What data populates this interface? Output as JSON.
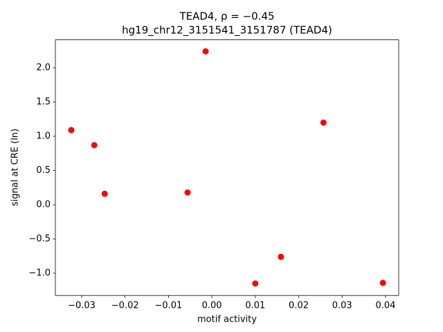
{
  "chart_data": {
    "type": "scatter",
    "title": "TEAD4, ρ = −0.45",
    "subtitle": "hg19_chr12_3151541_3151787 (TEAD4)",
    "x_label": "motif activity",
    "y_label": "signal at CRE (ln)",
    "x": [
      -0.0324,
      -0.0271,
      -0.0247,
      -0.0056,
      -0.00145,
      0.01,
      0.0159,
      0.0257,
      0.0394
    ],
    "values": [
      1.09,
      0.87,
      0.16,
      0.18,
      2.24,
      -1.15,
      -0.76,
      1.2,
      -1.14
    ],
    "color": "#ff0000",
    "xlim": [
      -0.03606,
      0.04304
    ],
    "ylim": [
      -1.325,
      2.408
    ],
    "xticks": [
      {
        "value": -0.03,
        "label": "−0.03"
      },
      {
        "value": -0.02,
        "label": "−0.02"
      },
      {
        "value": -0.01,
        "label": "−0.01"
      },
      {
        "value": 0,
        "label": "0.00"
      },
      {
        "value": 0.01,
        "label": "0.01"
      },
      {
        "value": 0.02,
        "label": "0.02"
      },
      {
        "value": 0.03,
        "label": "0.03"
      },
      {
        "value": 0.04,
        "label": "0.04"
      }
    ],
    "yticks": [
      {
        "value": -1.0,
        "label": "−1.0"
      },
      {
        "value": -0.5,
        "label": "−0.5"
      },
      {
        "value": 0,
        "label": "0.0"
      },
      {
        "value": 0.5,
        "label": "0.5"
      },
      {
        "value": 1.0,
        "label": "1.0"
      },
      {
        "value": 1.5,
        "label": "1.5"
      },
      {
        "value": 2.0,
        "label": "2.0"
      }
    ],
    "grid": false
  }
}
